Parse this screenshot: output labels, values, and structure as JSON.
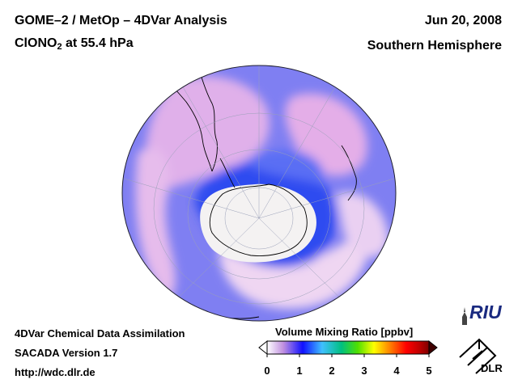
{
  "header": {
    "title_line1": "GOME–2 / MetOp – 4DVar Analysis",
    "species_prefix": "ClONO",
    "species_subscript": "2",
    "species_suffix": " at 55.4 hPa",
    "date": "Jun 20, 2008",
    "region": "Southern Hemisphere"
  },
  "footer": {
    "line1": "4DVar Chemical Data Assimilation",
    "line2": "SACADA Version 1.7",
    "line3": "http://wdc.dlr.de"
  },
  "colorbar": {
    "title": "Volume Mixing Ratio [ppbv]",
    "ticks": [
      "0",
      "1",
      "2",
      "3",
      "4",
      "5"
    ],
    "stops": [
      "#ffffff",
      "#c090e0",
      "#1010ff",
      "#40c0ff",
      "#00c080",
      "#50e000",
      "#ffff00",
      "#ff8000",
      "#ff0000",
      "#c00000",
      "#800000"
    ]
  },
  "logos": {
    "riu": "RIU",
    "dlr": "DLR"
  },
  "map": {
    "projection": "orthographic",
    "hemisphere": "south",
    "colors": {
      "background": "#7f7ff2",
      "low": "#f2e2f2",
      "mid": "#e2aaee",
      "high": "#3a55f0",
      "antarctica": "#f4f2f2",
      "coast": "#000000"
    }
  }
}
